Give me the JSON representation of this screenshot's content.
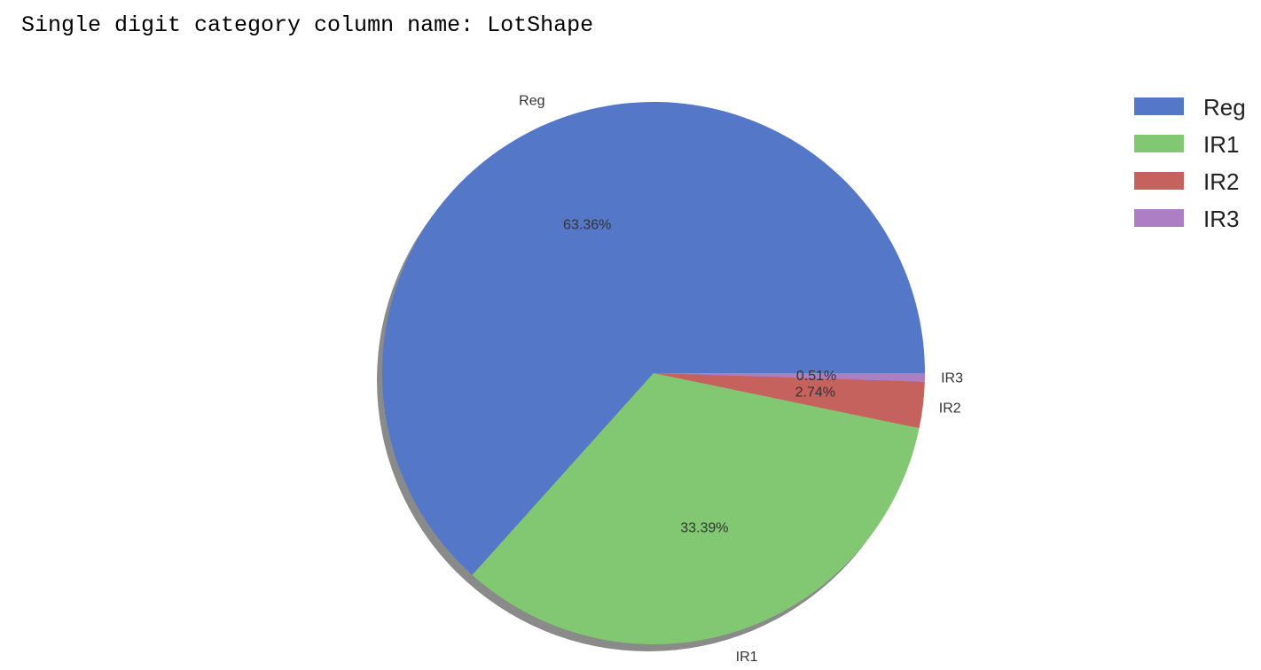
{
  "header": {
    "text": "Single digit category column name: LotShape"
  },
  "chart_data": {
    "type": "pie",
    "title": "",
    "categories": [
      "Reg",
      "IR1",
      "IR2",
      "IR3"
    ],
    "values": [
      63.36,
      33.39,
      2.74,
      0.51
    ],
    "percent_labels": [
      "63.36%",
      "33.39%",
      "2.74%",
      "0.51%"
    ],
    "colors": [
      "#5477c8",
      "#82c872",
      "#c5625d",
      "#ad7ec3"
    ],
    "shadow": true,
    "start_angle_deg": 0,
    "direction": "counterclockwise",
    "legend": {
      "position": "top-right",
      "entries": [
        "Reg",
        "IR1",
        "IR2",
        "IR3"
      ]
    }
  }
}
